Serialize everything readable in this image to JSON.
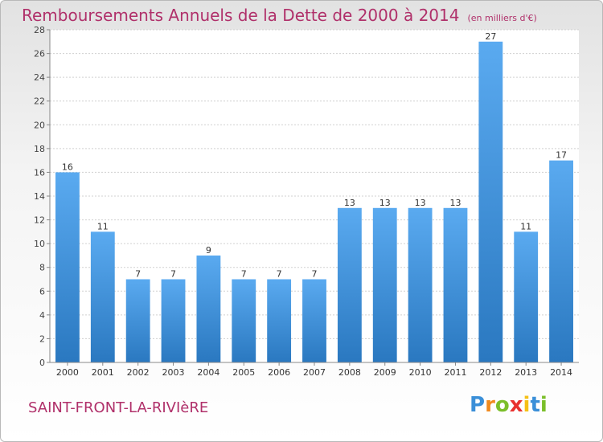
{
  "title": "Remboursements Annuels de la Dette de 2000 à 2014",
  "unit": "(en milliers d'€)",
  "commune": "SAINT-FRONT-LA-RIVIèRE",
  "logo": {
    "letters": [
      "P",
      "r",
      "o",
      "x",
      "i",
      "t",
      "i"
    ],
    "colors": [
      "#3a8fd8",
      "#f08a1e",
      "#7bbf2a",
      "#e8312f",
      "#f5c016",
      "#3a8fd8",
      "#7bbf2a"
    ]
  },
  "colors": {
    "title": "#b0306a",
    "bar_light": "#5aaaf0",
    "bar_dark": "#2a78c0"
  },
  "chart_data": {
    "type": "bar",
    "categories": [
      "2000",
      "2001",
      "2002",
      "2003",
      "2004",
      "2005",
      "2006",
      "2007",
      "2008",
      "2009",
      "2010",
      "2011",
      "2012",
      "2013",
      "2014"
    ],
    "values": [
      16,
      11,
      7,
      7,
      9,
      7,
      7,
      7,
      13,
      13,
      13,
      13,
      27,
      11,
      17
    ],
    "data_labels": [
      "16",
      "11",
      "7",
      "7",
      "9",
      "7",
      "7",
      "7",
      "13",
      "13",
      "13",
      "13",
      "27",
      "11",
      "17"
    ],
    "ylim": [
      0,
      28
    ],
    "yticks": [
      "0",
      "2",
      "4",
      "6",
      "8",
      "10",
      "12",
      "14",
      "16",
      "18",
      "20",
      "22",
      "24",
      "26",
      "28"
    ],
    "grid": true
  }
}
